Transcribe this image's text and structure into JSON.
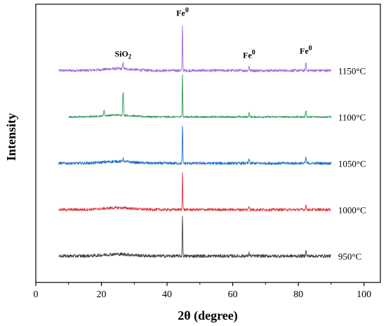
{
  "chart_data": {
    "type": "line",
    "title": "",
    "xlabel": "2θ (degree)",
    "ylabel": "Intensity",
    "xlim": [
      0,
      105
    ],
    "x_ticks": [
      "0",
      "20",
      "40",
      "60",
      "80",
      "100"
    ],
    "x_tick_values": [
      0,
      20,
      40,
      60,
      "80",
      100
    ],
    "grid": false,
    "legend": "labels at right end of each trace",
    "series": [
      {
        "name": "1150°C",
        "color": "#9a6ad6",
        "x_range": [
          7,
          90
        ],
        "baseline": 4.1,
        "noise": 0.03,
        "peaks": [
          {
            "x": 44.7,
            "height": 1.0
          },
          {
            "x": 26.6,
            "height": 0.12
          },
          {
            "x": 65.0,
            "height": 0.09
          },
          {
            "x": 82.3,
            "height": 0.18
          }
        ]
      },
      {
        "name": "1100°C",
        "color": "#2e9a5c",
        "x_range": [
          10,
          90
        ],
        "baseline": 3.1,
        "noise": 0.02,
        "peaks": [
          {
            "x": 44.7,
            "height": 0.95
          },
          {
            "x": 26.6,
            "height": 0.5
          },
          {
            "x": 20.8,
            "height": 0.12
          },
          {
            "x": 65.0,
            "height": 0.09
          },
          {
            "x": 82.3,
            "height": 0.15
          }
        ]
      },
      {
        "name": "1050°C",
        "color": "#1f6fc8",
        "x_range": [
          7,
          90
        ],
        "baseline": 2.1,
        "noise": 0.03,
        "peaks": [
          {
            "x": 44.7,
            "height": 0.85
          },
          {
            "x": 26.6,
            "height": 0.07
          },
          {
            "x": 65.0,
            "height": 0.08
          },
          {
            "x": 82.3,
            "height": 0.12
          }
        ]
      },
      {
        "name": "1000°C",
        "color": "#e0353a",
        "x_range": [
          7,
          90
        ],
        "baseline": 1.1,
        "noise": 0.03,
        "peaks": [
          {
            "x": 44.7,
            "height": 0.85
          },
          {
            "x": 65.0,
            "height": 0.08
          },
          {
            "x": 82.3,
            "height": 0.1
          }
        ]
      },
      {
        "name": "950°C",
        "color": "#444444",
        "x_range": [
          7,
          90
        ],
        "baseline": 0.1,
        "noise": 0.035,
        "peaks": [
          {
            "x": 44.7,
            "height": 0.9
          },
          {
            "x": 65.0,
            "height": 0.07
          },
          {
            "x": 82.3,
            "height": 0.12
          }
        ]
      }
    ],
    "annotations": [
      {
        "text": "SiO",
        "sub": "2",
        "sup": "",
        "x": 26.6
      },
      {
        "text": "Fe",
        "sub": "",
        "sup": "0",
        "x": 44.7
      },
      {
        "text": "Fe",
        "sub": "",
        "sup": "0",
        "x": 65.0
      },
      {
        "text": "Fe",
        "sub": "",
        "sup": "0",
        "x": 82.3
      }
    ]
  }
}
